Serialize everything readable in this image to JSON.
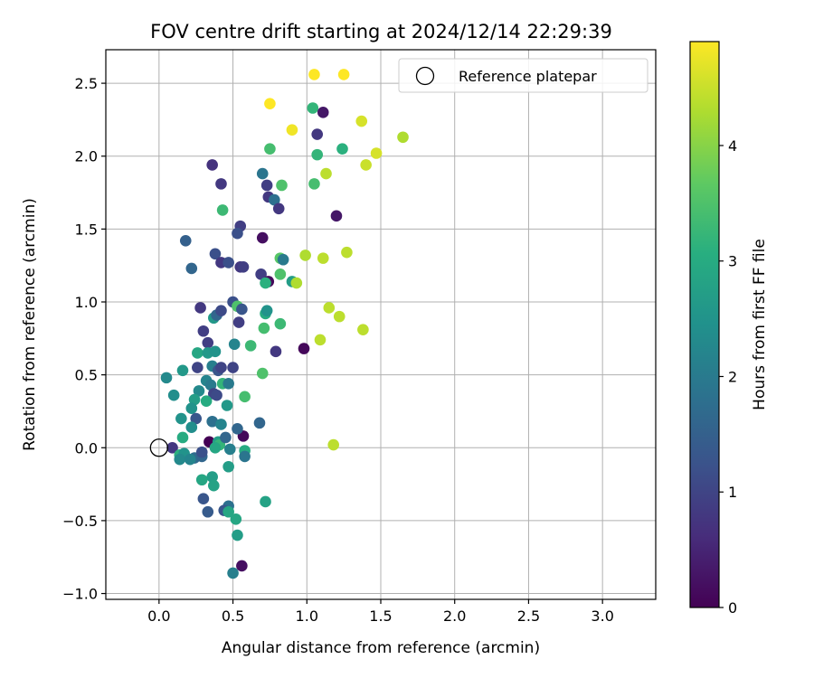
{
  "chart_data": {
    "type": "scatter",
    "title": "FOV centre drift starting at 2024/12/14 22:29:39",
    "xlabel": "Angular distance from reference (arcmin)",
    "ylabel": "Rotation from reference (arcmin)",
    "xlim": [
      -0.36,
      3.36
    ],
    "ylim": [
      -1.04,
      2.73
    ],
    "xticks": [
      "0.0",
      "0.5",
      "1.0",
      "1.5",
      "2.0",
      "2.5",
      "3.0"
    ],
    "yticks": [
      "−1.0",
      "−0.5",
      "0.0",
      "0.5",
      "1.0",
      "1.5",
      "2.0",
      "2.5"
    ],
    "grid": true,
    "legend": {
      "placement": "top-right",
      "entries": [
        "Reference platepar"
      ]
    },
    "reference_point": {
      "x": 0.0,
      "y": 0.0,
      "label": "Reference platepar"
    },
    "colorbar": {
      "label": "Hours from first FF file",
      "ticks": [
        "0",
        "1",
        "2",
        "3",
        "4"
      ],
      "range": [
        0,
        4.9
      ],
      "colormap": "viridis"
    },
    "points": [
      [
        1.05,
        2.56,
        4.9
      ],
      [
        1.25,
        2.56,
        4.9
      ],
      [
        0.75,
        2.36,
        4.9
      ],
      [
        0.9,
        2.18,
        4.8
      ],
      [
        1.37,
        2.24,
        4.6
      ],
      [
        1.47,
        2.02,
        4.6
      ],
      [
        1.65,
        2.13,
        4.3
      ],
      [
        1.4,
        1.94,
        4.5
      ],
      [
        1.13,
        1.88,
        4.4
      ],
      [
        1.04,
        2.33,
        3.2
      ],
      [
        1.11,
        2.3,
        0.3
      ],
      [
        1.07,
        2.15,
        0.8
      ],
      [
        1.07,
        2.01,
        3.2
      ],
      [
        1.24,
        2.05,
        3.1
      ],
      [
        0.75,
        2.05,
        3.4
      ],
      [
        0.83,
        1.8,
        3.5
      ],
      [
        1.05,
        1.81,
        3.4
      ],
      [
        0.7,
        1.88,
        1.9
      ],
      [
        0.73,
        1.8,
        0.9
      ],
      [
        0.74,
        1.72,
        0.8
      ],
      [
        0.78,
        1.7,
        1.8
      ],
      [
        0.81,
        1.64,
        0.8
      ],
      [
        0.36,
        1.94,
        0.7
      ],
      [
        0.42,
        1.81,
        0.8
      ],
      [
        0.43,
        1.63,
        3.3
      ],
      [
        1.2,
        1.59,
        0.3
      ],
      [
        0.55,
        1.52,
        0.9
      ],
      [
        0.53,
        1.47,
        1.2
      ],
      [
        0.7,
        1.44,
        0.2
      ],
      [
        0.18,
        1.42,
        1.5
      ],
      [
        0.38,
        1.33,
        1.2
      ],
      [
        0.42,
        1.27,
        0.8
      ],
      [
        0.47,
        1.27,
        1.2
      ],
      [
        0.55,
        1.24,
        0.8
      ],
      [
        0.57,
        1.24,
        0.9
      ],
      [
        0.22,
        1.23,
        1.6
      ],
      [
        0.69,
        1.19,
        0.9
      ],
      [
        0.74,
        1.14,
        0.1
      ],
      [
        0.72,
        1.13,
        3.1
      ],
      [
        0.82,
        1.3,
        3.6
      ],
      [
        0.84,
        1.29,
        2.0
      ],
      [
        0.82,
        1.19,
        3.5
      ],
      [
        0.9,
        1.14,
        2.7
      ],
      [
        0.93,
        1.13,
        4.3
      ],
      [
        0.99,
        1.32,
        4.3
      ],
      [
        1.11,
        1.3,
        4.4
      ],
      [
        1.27,
        1.34,
        4.4
      ],
      [
        1.15,
        0.96,
        4.4
      ],
      [
        1.22,
        0.9,
        4.4
      ],
      [
        1.38,
        0.81,
        4.4
      ],
      [
        1.09,
        0.74,
        4.4
      ],
      [
        1.18,
        0.02,
        4.4
      ],
      [
        0.98,
        0.68,
        0.1
      ],
      [
        0.79,
        0.66,
        0.8
      ],
      [
        0.82,
        0.85,
        3.3
      ],
      [
        0.71,
        0.82,
        3.4
      ],
      [
        0.72,
        0.92,
        3.0
      ],
      [
        0.73,
        0.94,
        2.5
      ],
      [
        0.62,
        0.7,
        3.3
      ],
      [
        0.7,
        0.51,
        3.5
      ],
      [
        0.58,
        0.35,
        3.4
      ],
      [
        0.68,
        0.17,
        1.6
      ],
      [
        0.57,
        0.08,
        0.1
      ],
      [
        0.5,
        1.0,
        1.2
      ],
      [
        0.53,
        0.97,
        3.5
      ],
      [
        0.56,
        0.95,
        1.3
      ],
      [
        0.54,
        0.86,
        0.9
      ],
      [
        0.28,
        0.96,
        0.8
      ],
      [
        0.37,
        0.89,
        2.6
      ],
      [
        0.39,
        0.91,
        1.6
      ],
      [
        0.42,
        0.94,
        1.1
      ],
      [
        0.3,
        0.8,
        0.9
      ],
      [
        0.33,
        0.72,
        0.9
      ],
      [
        0.26,
        0.65,
        2.9
      ],
      [
        0.33,
        0.65,
        2.6
      ],
      [
        0.38,
        0.66,
        2.5
      ],
      [
        0.51,
        0.71,
        2.2
      ],
      [
        0.26,
        0.55,
        1.0
      ],
      [
        0.36,
        0.56,
        2.1
      ],
      [
        0.4,
        0.53,
        1.3
      ],
      [
        0.42,
        0.55,
        1.0
      ],
      [
        0.5,
        0.55,
        1.0
      ],
      [
        0.05,
        0.48,
        2.3
      ],
      [
        0.16,
        0.53,
        2.6
      ],
      [
        0.32,
        0.46,
        2.2
      ],
      [
        0.35,
        0.43,
        2.0
      ],
      [
        0.43,
        0.44,
        3.2
      ],
      [
        0.47,
        0.44,
        2.0
      ],
      [
        0.1,
        0.36,
        2.4
      ],
      [
        0.27,
        0.39,
        2.3
      ],
      [
        0.37,
        0.37,
        1.0
      ],
      [
        0.39,
        0.36,
        1.1
      ],
      [
        0.24,
        0.33,
        2.7
      ],
      [
        0.32,
        0.32,
        3.0
      ],
      [
        0.46,
        0.29,
        2.6
      ],
      [
        0.22,
        0.27,
        2.5
      ],
      [
        0.15,
        0.2,
        2.5
      ],
      [
        0.25,
        0.2,
        1.3
      ],
      [
        0.36,
        0.18,
        1.8
      ],
      [
        0.42,
        0.16,
        2.2
      ],
      [
        0.53,
        0.13,
        1.6
      ],
      [
        0.22,
        0.14,
        2.4
      ],
      [
        0.16,
        0.07,
        3.0
      ],
      [
        0.34,
        0.04,
        0.0
      ],
      [
        0.4,
        0.04,
        2.7
      ],
      [
        0.41,
        0.02,
        3.2
      ],
      [
        0.45,
        0.07,
        1.6
      ],
      [
        0.09,
        0.0,
        0.8
      ],
      [
        0.38,
        0.0,
        2.9
      ],
      [
        0.48,
        -0.01,
        2.1
      ],
      [
        0.58,
        -0.02,
        3.0
      ],
      [
        0.14,
        -0.05,
        3.1
      ],
      [
        0.17,
        -0.04,
        2.5
      ],
      [
        0.24,
        -0.07,
        1.7
      ],
      [
        0.29,
        -0.06,
        1.6
      ],
      [
        0.14,
        -0.08,
        2.3
      ],
      [
        0.21,
        -0.08,
        2.2
      ],
      [
        0.29,
        -0.03,
        1.2
      ],
      [
        0.58,
        -0.06,
        1.9
      ],
      [
        0.47,
        -0.13,
        2.7
      ],
      [
        0.36,
        -0.2,
        2.7
      ],
      [
        0.29,
        -0.22,
        2.9
      ],
      [
        0.37,
        -0.26,
        2.8
      ],
      [
        0.3,
        -0.35,
        1.3
      ],
      [
        0.72,
        -0.37,
        2.8
      ],
      [
        0.47,
        -0.4,
        1.8
      ],
      [
        0.44,
        -0.43,
        1.3
      ],
      [
        0.33,
        -0.44,
        1.4
      ],
      [
        0.47,
        -0.44,
        2.9
      ],
      [
        0.52,
        -0.49,
        2.9
      ],
      [
        0.53,
        -0.6,
        2.7
      ],
      [
        0.56,
        -0.81,
        0.2
      ],
      [
        0.5,
        -0.86,
        2.1
      ]
    ]
  }
}
